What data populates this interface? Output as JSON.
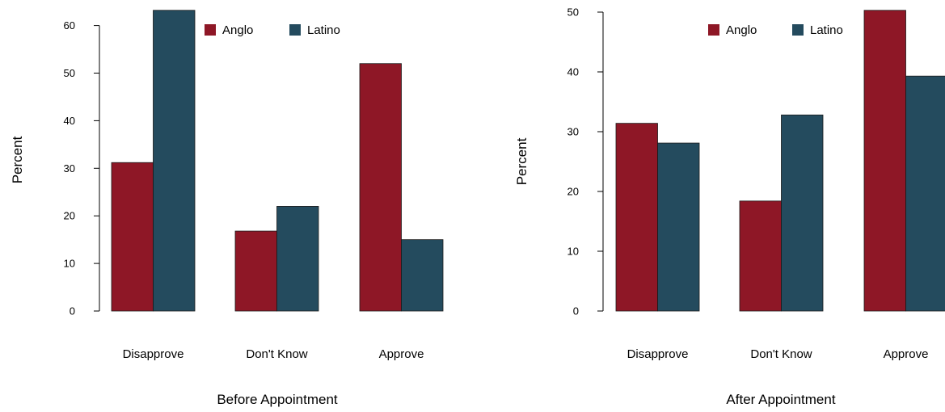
{
  "colors": {
    "Anglo": "#8e1726",
    "Latino": "#244b5e"
  },
  "chart_data": [
    {
      "type": "bar",
      "categories": [
        "Disapprove",
        "Don't Know",
        "Approve"
      ],
      "series": [
        {
          "name": "Anglo",
          "values": [
            31.2,
            16.8,
            52
          ]
        },
        {
          "name": "Latino",
          "values": [
            63.2,
            22,
            15
          ]
        }
      ],
      "xlabel": "Before Appointment",
      "ylabel": "Percent",
      "ylim": [
        0,
        60
      ],
      "yticks": [
        "0",
        "10",
        "20",
        "30",
        "40",
        "50",
        "60"
      ],
      "legend": "top"
    },
    {
      "type": "bar",
      "categories": [
        "Disapprove",
        "Don't Know",
        "Approve"
      ],
      "series": [
        {
          "name": "Anglo",
          "values": [
            31.4,
            18.4,
            50.3
          ]
        },
        {
          "name": "Latino",
          "values": [
            28.1,
            32.8,
            39.3
          ]
        }
      ],
      "xlabel": "After Appointment",
      "ylabel": "Percent",
      "ylim": [
        0,
        50
      ],
      "yticks": [
        "0",
        "10",
        "20",
        "30",
        "40",
        "50"
      ],
      "legend": "top"
    }
  ]
}
